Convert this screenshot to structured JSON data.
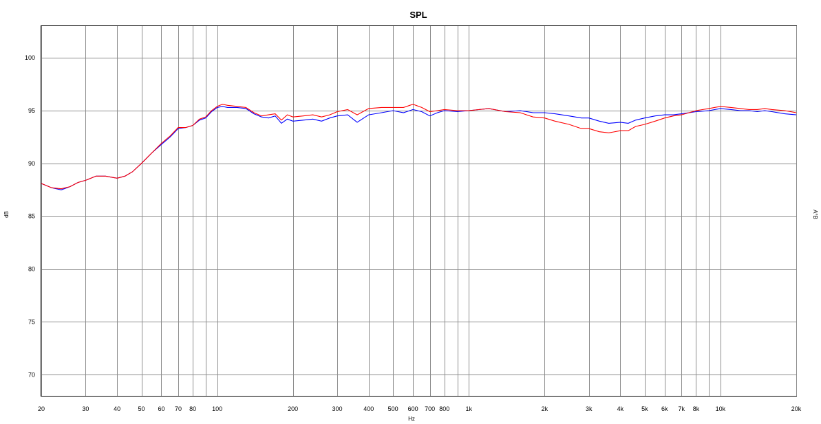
{
  "chart_data": {
    "type": "line",
    "title": "SPL",
    "xlabel": "Hz",
    "ylabel": "dB",
    "y2label": "A°B",
    "x_scale": "log",
    "xlim": [
      20,
      20000
    ],
    "ylim": [
      68,
      103
    ],
    "grid": true,
    "x_ticks": [
      {
        "value": 20,
        "label": "20"
      },
      {
        "value": 30,
        "label": "30"
      },
      {
        "value": 40,
        "label": "40"
      },
      {
        "value": 50,
        "label": "50"
      },
      {
        "value": 60,
        "label": "60"
      },
      {
        "value": 70,
        "label": "70"
      },
      {
        "value": 80,
        "label": "80"
      },
      {
        "value": 90,
        "label": ""
      },
      {
        "value": 100,
        "label": "100"
      },
      {
        "value": 200,
        "label": "200"
      },
      {
        "value": 300,
        "label": "300"
      },
      {
        "value": 400,
        "label": "400"
      },
      {
        "value": 500,
        "label": "500"
      },
      {
        "value": 600,
        "label": "600"
      },
      {
        "value": 700,
        "label": "700"
      },
      {
        "value": 800,
        "label": "800"
      },
      {
        "value": 900,
        "label": ""
      },
      {
        "value": 1000,
        "label": "1k"
      },
      {
        "value": 2000,
        "label": "2k"
      },
      {
        "value": 3000,
        "label": "3k"
      },
      {
        "value": 4000,
        "label": "4k"
      },
      {
        "value": 5000,
        "label": "5k"
      },
      {
        "value": 6000,
        "label": "6k"
      },
      {
        "value": 7000,
        "label": "7k"
      },
      {
        "value": 8000,
        "label": "8k"
      },
      {
        "value": 9000,
        "label": ""
      },
      {
        "value": 10000,
        "label": "10k"
      },
      {
        "value": 20000,
        "label": "20k"
      }
    ],
    "y_ticks": [
      70,
      75,
      80,
      85,
      90,
      95,
      100
    ],
    "series": [
      {
        "color": "#0000ff",
        "x": [
          20,
          22,
          24,
          26,
          28,
          30,
          33,
          36,
          40,
          43,
          46,
          50,
          55,
          60,
          65,
          70,
          75,
          80,
          85,
          90,
          95,
          100,
          105,
          110,
          120,
          130,
          140,
          150,
          160,
          170,
          180,
          190,
          200,
          220,
          240,
          260,
          280,
          300,
          330,
          360,
          400,
          450,
          500,
          550,
          600,
          650,
          700,
          750,
          800,
          900,
          1000,
          1200,
          1400,
          1600,
          1800,
          2000,
          2200,
          2500,
          2800,
          3000,
          3300,
          3600,
          4000,
          4300,
          4600,
          5000,
          5500,
          6000,
          6500,
          7000,
          8000,
          9000,
          10000,
          11000,
          12000,
          13000,
          14000,
          15000,
          16000,
          18000,
          20000
        ],
        "y": [
          88.1,
          87.7,
          87.5,
          87.8,
          88.2,
          88.4,
          88.8,
          88.8,
          88.6,
          88.8,
          89.2,
          90.0,
          91.0,
          91.8,
          92.5,
          93.3,
          93.4,
          93.6,
          94.1,
          94.3,
          94.9,
          95.3,
          95.4,
          95.3,
          95.3,
          95.2,
          94.7,
          94.4,
          94.3,
          94.5,
          93.8,
          94.2,
          94.0,
          94.1,
          94.2,
          94.0,
          94.3,
          94.5,
          94.6,
          93.9,
          94.6,
          94.8,
          95.0,
          94.8,
          95.1,
          94.9,
          94.5,
          94.8,
          95.0,
          94.9,
          95.0,
          95.2,
          94.9,
          95.0,
          94.8,
          94.8,
          94.7,
          94.5,
          94.3,
          94.3,
          94.0,
          93.8,
          93.9,
          93.8,
          94.1,
          94.3,
          94.5,
          94.6,
          94.6,
          94.7,
          94.9,
          95.0,
          95.2,
          95.1,
          95.0,
          95.0,
          94.9,
          95.0,
          94.9,
          94.7,
          94.6
        ]
      },
      {
        "color": "#ff0000",
        "x": [
          20,
          22,
          24,
          26,
          28,
          30,
          33,
          36,
          40,
          43,
          46,
          50,
          55,
          60,
          65,
          70,
          75,
          80,
          85,
          90,
          95,
          100,
          105,
          110,
          120,
          130,
          140,
          150,
          160,
          170,
          180,
          190,
          200,
          220,
          240,
          260,
          280,
          300,
          330,
          360,
          400,
          450,
          500,
          550,
          600,
          650,
          700,
          750,
          800,
          900,
          1000,
          1200,
          1400,
          1600,
          1800,
          2000,
          2200,
          2500,
          2800,
          3000,
          3300,
          3600,
          4000,
          4300,
          4600,
          5000,
          5500,
          6000,
          6500,
          7000,
          8000,
          9000,
          10000,
          11000,
          12000,
          13000,
          14000,
          15000,
          16000,
          18000,
          20000
        ],
        "y": [
          88.1,
          87.7,
          87.6,
          87.8,
          88.2,
          88.4,
          88.8,
          88.8,
          88.6,
          88.8,
          89.2,
          90.0,
          91.0,
          91.9,
          92.6,
          93.4,
          93.4,
          93.6,
          94.2,
          94.4,
          95.0,
          95.4,
          95.6,
          95.5,
          95.4,
          95.3,
          94.8,
          94.5,
          94.6,
          94.7,
          94.1,
          94.6,
          94.4,
          94.5,
          94.6,
          94.4,
          94.6,
          94.9,
          95.1,
          94.6,
          95.2,
          95.3,
          95.3,
          95.3,
          95.6,
          95.3,
          94.9,
          95.0,
          95.1,
          95.0,
          95.0,
          95.2,
          94.9,
          94.8,
          94.4,
          94.3,
          94.0,
          93.7,
          93.3,
          93.3,
          93.0,
          92.9,
          93.1,
          93.1,
          93.5,
          93.7,
          94.0,
          94.3,
          94.5,
          94.6,
          95.0,
          95.2,
          95.4,
          95.3,
          95.2,
          95.1,
          95.1,
          95.2,
          95.1,
          95.0,
          94.8
        ]
      }
    ]
  }
}
